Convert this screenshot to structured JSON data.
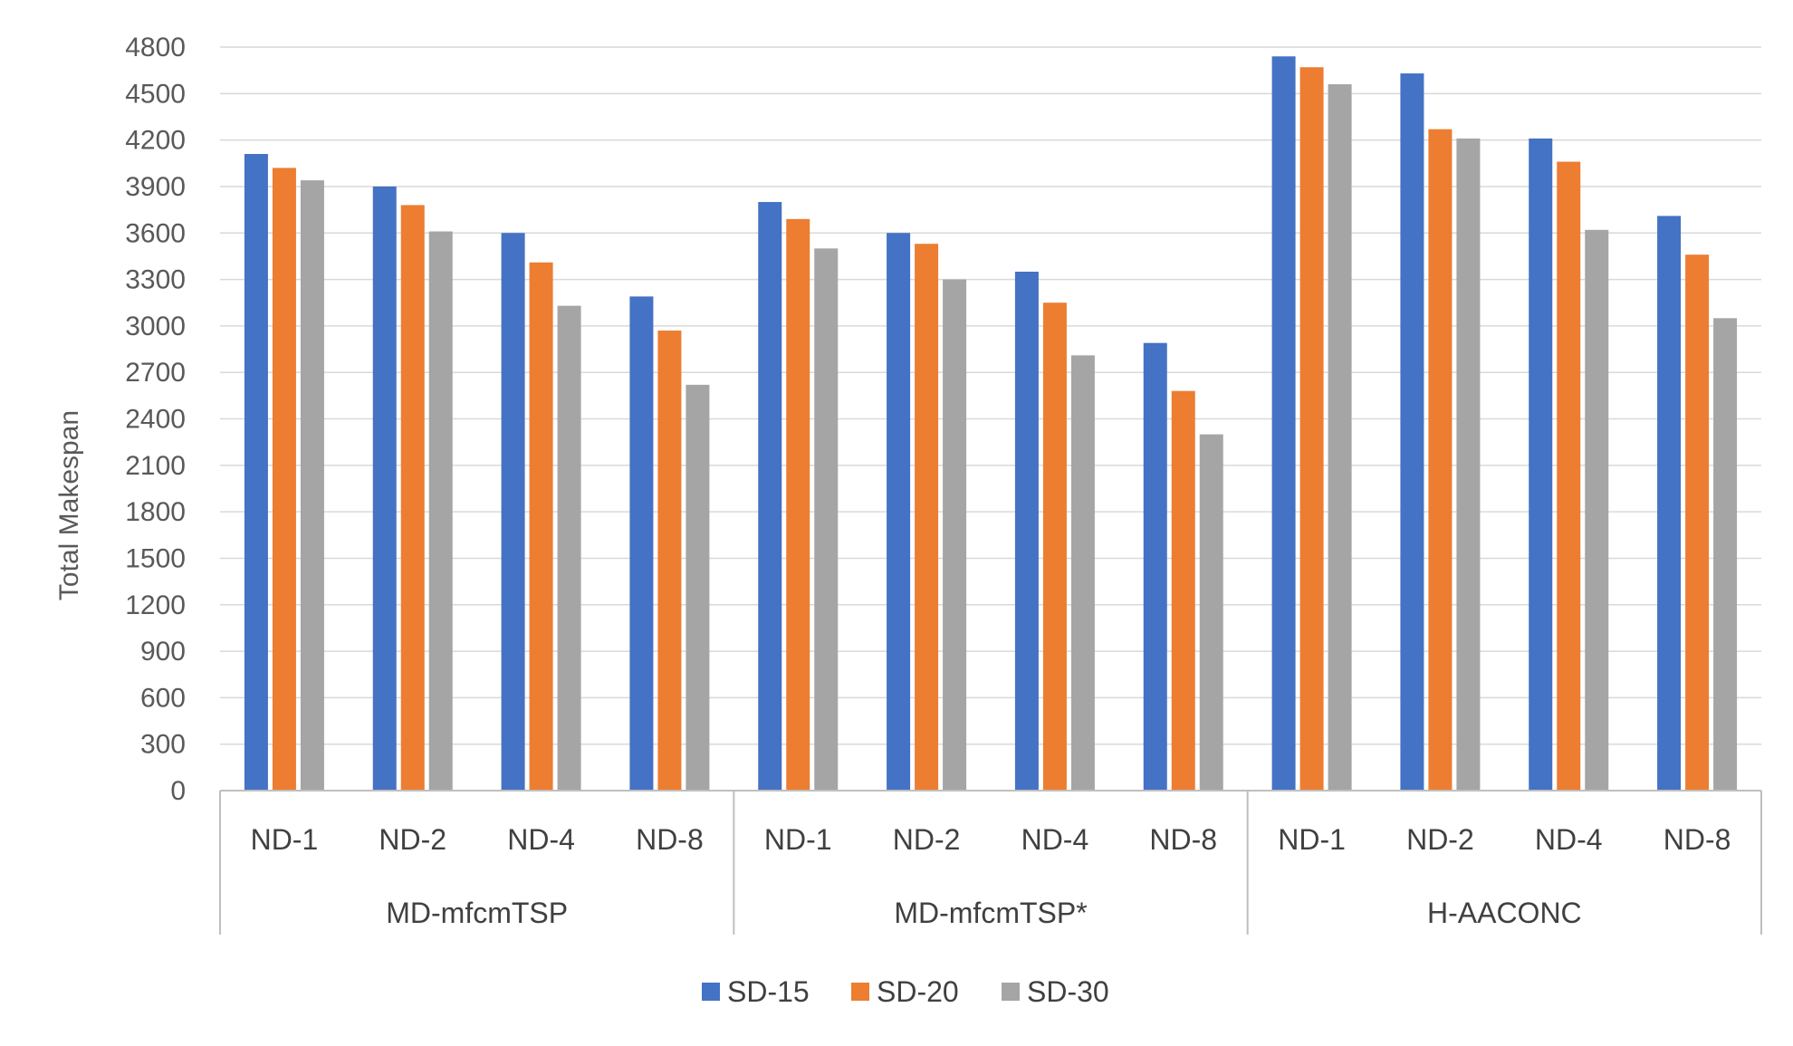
{
  "chart_data": {
    "type": "bar",
    "title": "",
    "ylabel": "Total Makespan",
    "xlabel": "",
    "ylim": [
      0,
      4800
    ],
    "yticks": [
      0,
      300,
      600,
      900,
      1200,
      1500,
      1800,
      2100,
      2400,
      2700,
      3000,
      3300,
      3600,
      3900,
      4200,
      4500,
      4800
    ],
    "grid": true,
    "legend_position": "bottom",
    "groups": [
      "MD-mfcmTSP",
      "MD-mfcmTSP*",
      "H-AACONC"
    ],
    "subcategories": [
      "ND-1",
      "ND-2",
      "ND-4",
      "ND-8"
    ],
    "categories": [
      "ND-1",
      "ND-2",
      "ND-4",
      "ND-8",
      "ND-1",
      "ND-2",
      "ND-4",
      "ND-8",
      "ND-1",
      "ND-2",
      "ND-4",
      "ND-8"
    ],
    "series": [
      {
        "name": "SD-15",
        "color": "#4472C4",
        "values": [
          4110,
          3900,
          3600,
          3190,
          3800,
          3600,
          3350,
          2890,
          4740,
          4630,
          4210,
          3710
        ]
      },
      {
        "name": "SD-20",
        "color": "#ED7D31",
        "values": [
          4020,
          3780,
          3410,
          2970,
          3690,
          3530,
          3150,
          2580,
          4670,
          4270,
          4060,
          3460
        ]
      },
      {
        "name": "SD-30",
        "color": "#A5A5A5",
        "values": [
          3940,
          3610,
          3130,
          2620,
          3500,
          3300,
          2810,
          2300,
          4560,
          4210,
          3620,
          3050
        ]
      }
    ]
  }
}
